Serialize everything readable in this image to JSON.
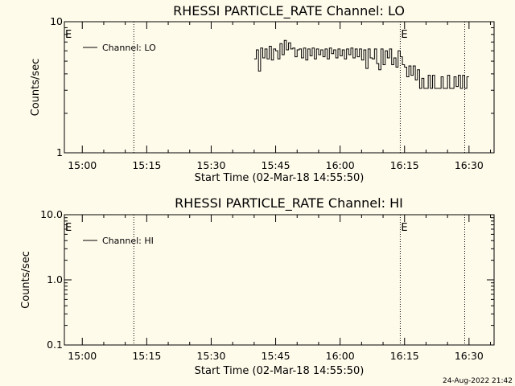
{
  "footer": {
    "timestamp": "24-Aug-2022 21:42"
  },
  "chart_data": [
    {
      "type": "line",
      "title": "RHESSI PARTICLE_RATE Channel: LO",
      "xlabel": "Start Time (02-Mar-18 14:55:50)",
      "ylabel": "Counts/sec",
      "yscale": "log",
      "ylim": [
        1,
        10
      ],
      "xlim": [
        "14:55:50",
        "16:35:50"
      ],
      "yticks": [
        {
          "value": 1,
          "label": "1"
        },
        {
          "value": 10,
          "label": "10"
        }
      ],
      "xticks": [
        {
          "time": "15:00",
          "label": "15:00"
        },
        {
          "time": "15:15",
          "label": "15:15"
        },
        {
          "time": "15:30",
          "label": "15:30"
        },
        {
          "time": "15:45",
          "label": "15:45"
        },
        {
          "time": "16:00",
          "label": "16:00"
        },
        {
          "time": "16:15",
          "label": "16:15"
        },
        {
          "time": "16:30",
          "label": "16:30"
        }
      ],
      "legend": {
        "placement": "top-left",
        "label": "Channel: LO"
      },
      "markers": [
        {
          "time": "15:12",
          "label": ""
        },
        {
          "time": "16:14",
          "label": "E"
        },
        {
          "time": "16:29",
          "label": ""
        }
      ],
      "left_edge_label": "E",
      "series": [
        {
          "x": [
            "15:40",
            "15:40:30",
            "15:41",
            "15:41:30",
            "15:42",
            "15:42:30",
            "15:43",
            "15:43:30",
            "15:44",
            "15:44:30",
            "15:45",
            "15:45:30",
            "15:46",
            "15:46:30",
            "15:47",
            "15:47:30",
            "15:48",
            "15:48:30",
            "15:49",
            "15:49:30",
            "15:50",
            "15:50:30",
            "15:51",
            "15:51:30",
            "15:52",
            "15:52:30",
            "15:53",
            "15:53:30",
            "15:54",
            "15:54:30",
            "15:55",
            "15:55:30",
            "15:56",
            "15:56:30",
            "15:57",
            "15:57:30",
            "15:58",
            "15:58:30",
            "15:59",
            "15:59:30",
            "16:00",
            "16:00:30",
            "16:01",
            "16:01:30",
            "16:02",
            "16:02:30",
            "16:03",
            "16:03:30",
            "16:04",
            "16:04:30",
            "16:05",
            "16:05:30",
            "16:06",
            "16:06:30",
            "16:07",
            "16:07:30",
            "16:08",
            "16:08:30",
            "16:09",
            "16:09:30",
            "16:10",
            "16:10:30",
            "16:11",
            "16:11:30",
            "16:12",
            "16:12:30",
            "16:13",
            "16:13:30",
            "16:14",
            "16:14:30",
            "16:15",
            "16:15:30",
            "16:16",
            "16:16:30",
            "16:17",
            "16:17:30",
            "16:18",
            "16:18:30",
            "16:19",
            "16:19:30",
            "16:20",
            "16:20:30",
            "16:21",
            "16:21:30",
            "16:22",
            "16:22:30",
            "16:23",
            "16:23:30",
            "16:24",
            "16:24:30",
            "16:25",
            "16:25:30",
            "16:26",
            "16:26:30",
            "16:27",
            "16:27:30",
            "16:28",
            "16:28:30",
            "16:29",
            "16:29:30"
          ],
          "values": [
            5.2,
            6.1,
            4.2,
            6.3,
            5.3,
            6.2,
            5.2,
            6.5,
            5.1,
            6.2,
            6.0,
            5.2,
            6.8,
            5.6,
            7.2,
            6.1,
            6.9,
            6.2,
            6.3,
            5.4,
            6.1,
            6.2,
            5.3,
            6.3,
            5.1,
            6.2,
            5.5,
            6.3,
            5.2,
            6.2,
            5.6,
            6.1,
            5.4,
            6.2,
            5.2,
            6.3,
            5.7,
            6.1,
            5.3,
            6.2,
            5.5,
            6.1,
            5.2,
            6.2,
            5.6,
            6.3,
            5.3,
            6.2,
            5.4,
            6.2,
            5.1,
            6.1,
            4.4,
            6.2,
            5.3,
            5.2,
            6.2,
            4.8,
            4.3,
            6.2,
            4.7,
            6.0,
            5.3,
            6.2,
            4.7,
            5.3,
            4.5,
            6.0,
            5.4,
            4.7,
            4.5,
            3.8,
            4.6,
            3.9,
            4.6,
            3.6,
            4.3,
            3.1,
            3.7,
            3.1,
            3.1,
            3.9,
            3.1,
            3.9,
            3.1,
            3.1,
            3.1,
            3.8,
            3.1,
            3.1,
            3.9,
            3.1,
            3.1,
            3.8,
            3.2,
            3.9,
            3.1,
            3.9,
            3.1,
            3.8
          ]
        }
      ]
    },
    {
      "type": "line",
      "title": "RHESSI PARTICLE_RATE Channel: HI",
      "xlabel": "Start Time (02-Mar-18 14:55:50)",
      "ylabel": "Counts/sec",
      "yscale": "log",
      "ylim": [
        0.1,
        10
      ],
      "xlim": [
        "14:55:50",
        "16:35:50"
      ],
      "yticks": [
        {
          "value": 0.1,
          "label": "0.1"
        },
        {
          "value": 1,
          "label": "1.0"
        },
        {
          "value": 10,
          "label": "10.0"
        }
      ],
      "xticks": [
        {
          "time": "15:00",
          "label": "15:00"
        },
        {
          "time": "15:15",
          "label": "15:15"
        },
        {
          "time": "15:30",
          "label": "15:30"
        },
        {
          "time": "15:45",
          "label": "15:45"
        },
        {
          "time": "16:00",
          "label": "16:00"
        },
        {
          "time": "16:15",
          "label": "16:15"
        },
        {
          "time": "16:30",
          "label": "16:30"
        }
      ],
      "legend": {
        "placement": "top-left",
        "label": "Channel: HI"
      },
      "markers": [
        {
          "time": "15:12",
          "label": ""
        },
        {
          "time": "16:14",
          "label": "E"
        },
        {
          "time": "16:29",
          "label": ""
        }
      ],
      "left_edge_label": "E",
      "series": [
        {
          "x": [],
          "values": []
        }
      ]
    }
  ]
}
